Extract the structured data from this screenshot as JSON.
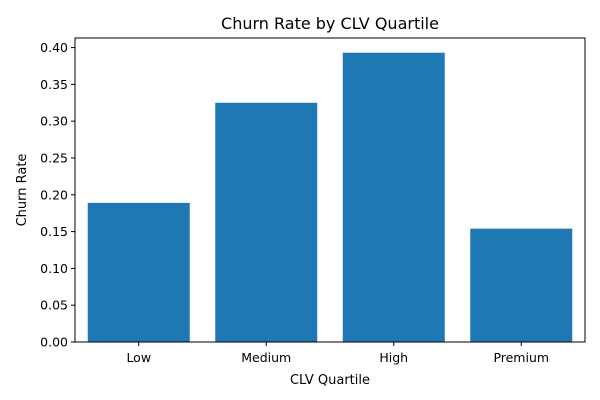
{
  "chart_data": {
    "type": "bar",
    "title": "Churn Rate by CLV Quartile",
    "xlabel": "CLV Quartile",
    "ylabel": "Churn Rate",
    "categories": [
      "Low",
      "Medium",
      "High",
      "Premium"
    ],
    "values": [
      0.189,
      0.325,
      0.393,
      0.154
    ],
    "ylim": [
      0,
      0.413
    ],
    "yticks": [
      "0.00",
      "0.05",
      "0.10",
      "0.15",
      "0.20",
      "0.25",
      "0.30",
      "0.35",
      "0.40"
    ],
    "grid": false,
    "legend": "none",
    "bar_color": "#1f77b4"
  }
}
